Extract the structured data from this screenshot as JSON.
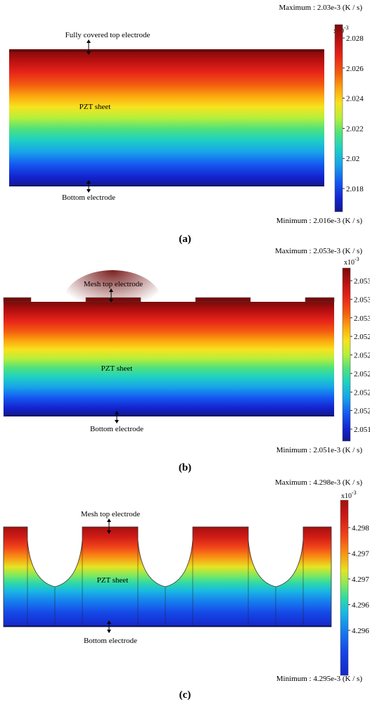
{
  "panels": [
    {
      "id": "a",
      "caption": "(a)",
      "maximum_text": "Maximum : 2.03e-3",
      "minimum_text": "Minimum : 2.016e-3",
      "unit": "(K / s)",
      "multiplier_base": "x10",
      "multiplier_exp": "-3",
      "ticks": [
        "2.028",
        "2.026",
        "2.024",
        "2.022",
        "2.02",
        "2.018"
      ],
      "label_top": "Fully covered top electrode",
      "label_sheet": "PZT sheet",
      "label_bottom": "Bottom electrode"
    },
    {
      "id": "b",
      "caption": "(b)",
      "maximum_text": "Maximum : 2.053e-3",
      "minimum_text": "Minimum : 2.051e-3",
      "unit": "(K / s)",
      "multiplier_base": "x10",
      "multiplier_exp": "-3",
      "ticks": [
        "2.053",
        "2.053",
        "2.053",
        "2.052",
        "2.052",
        "2.052",
        "2.052",
        "2.052",
        "2.051"
      ],
      "label_top": "Mesh top electrode",
      "label_sheet": "PZT sheet",
      "label_bottom": "Bottom electrode"
    },
    {
      "id": "c",
      "caption": "(c)",
      "maximum_text": "Maximum : 4.298e-3",
      "minimum_text": "Minimum : 4.295e-3",
      "unit": "(K / s)",
      "multiplier_base": "x10",
      "multiplier_exp": "-3",
      "ticks": [
        "4.298",
        "4.297",
        "4.297",
        "4.296",
        "4.296"
      ],
      "label_top": "Mesh top electrode",
      "label_sheet": "PZT sheet",
      "label_bottom": "Bottom electrode"
    }
  ],
  "colormap": [
    "#7a0a0a",
    "#b71010",
    "#e8251a",
    "#f35d10",
    "#fca50f",
    "#f7e21e",
    "#b6ef3b",
    "#4fe27b",
    "#1fd1c3",
    "#18a2e9",
    "#1559f0",
    "#1423d0",
    "#12188f"
  ]
}
